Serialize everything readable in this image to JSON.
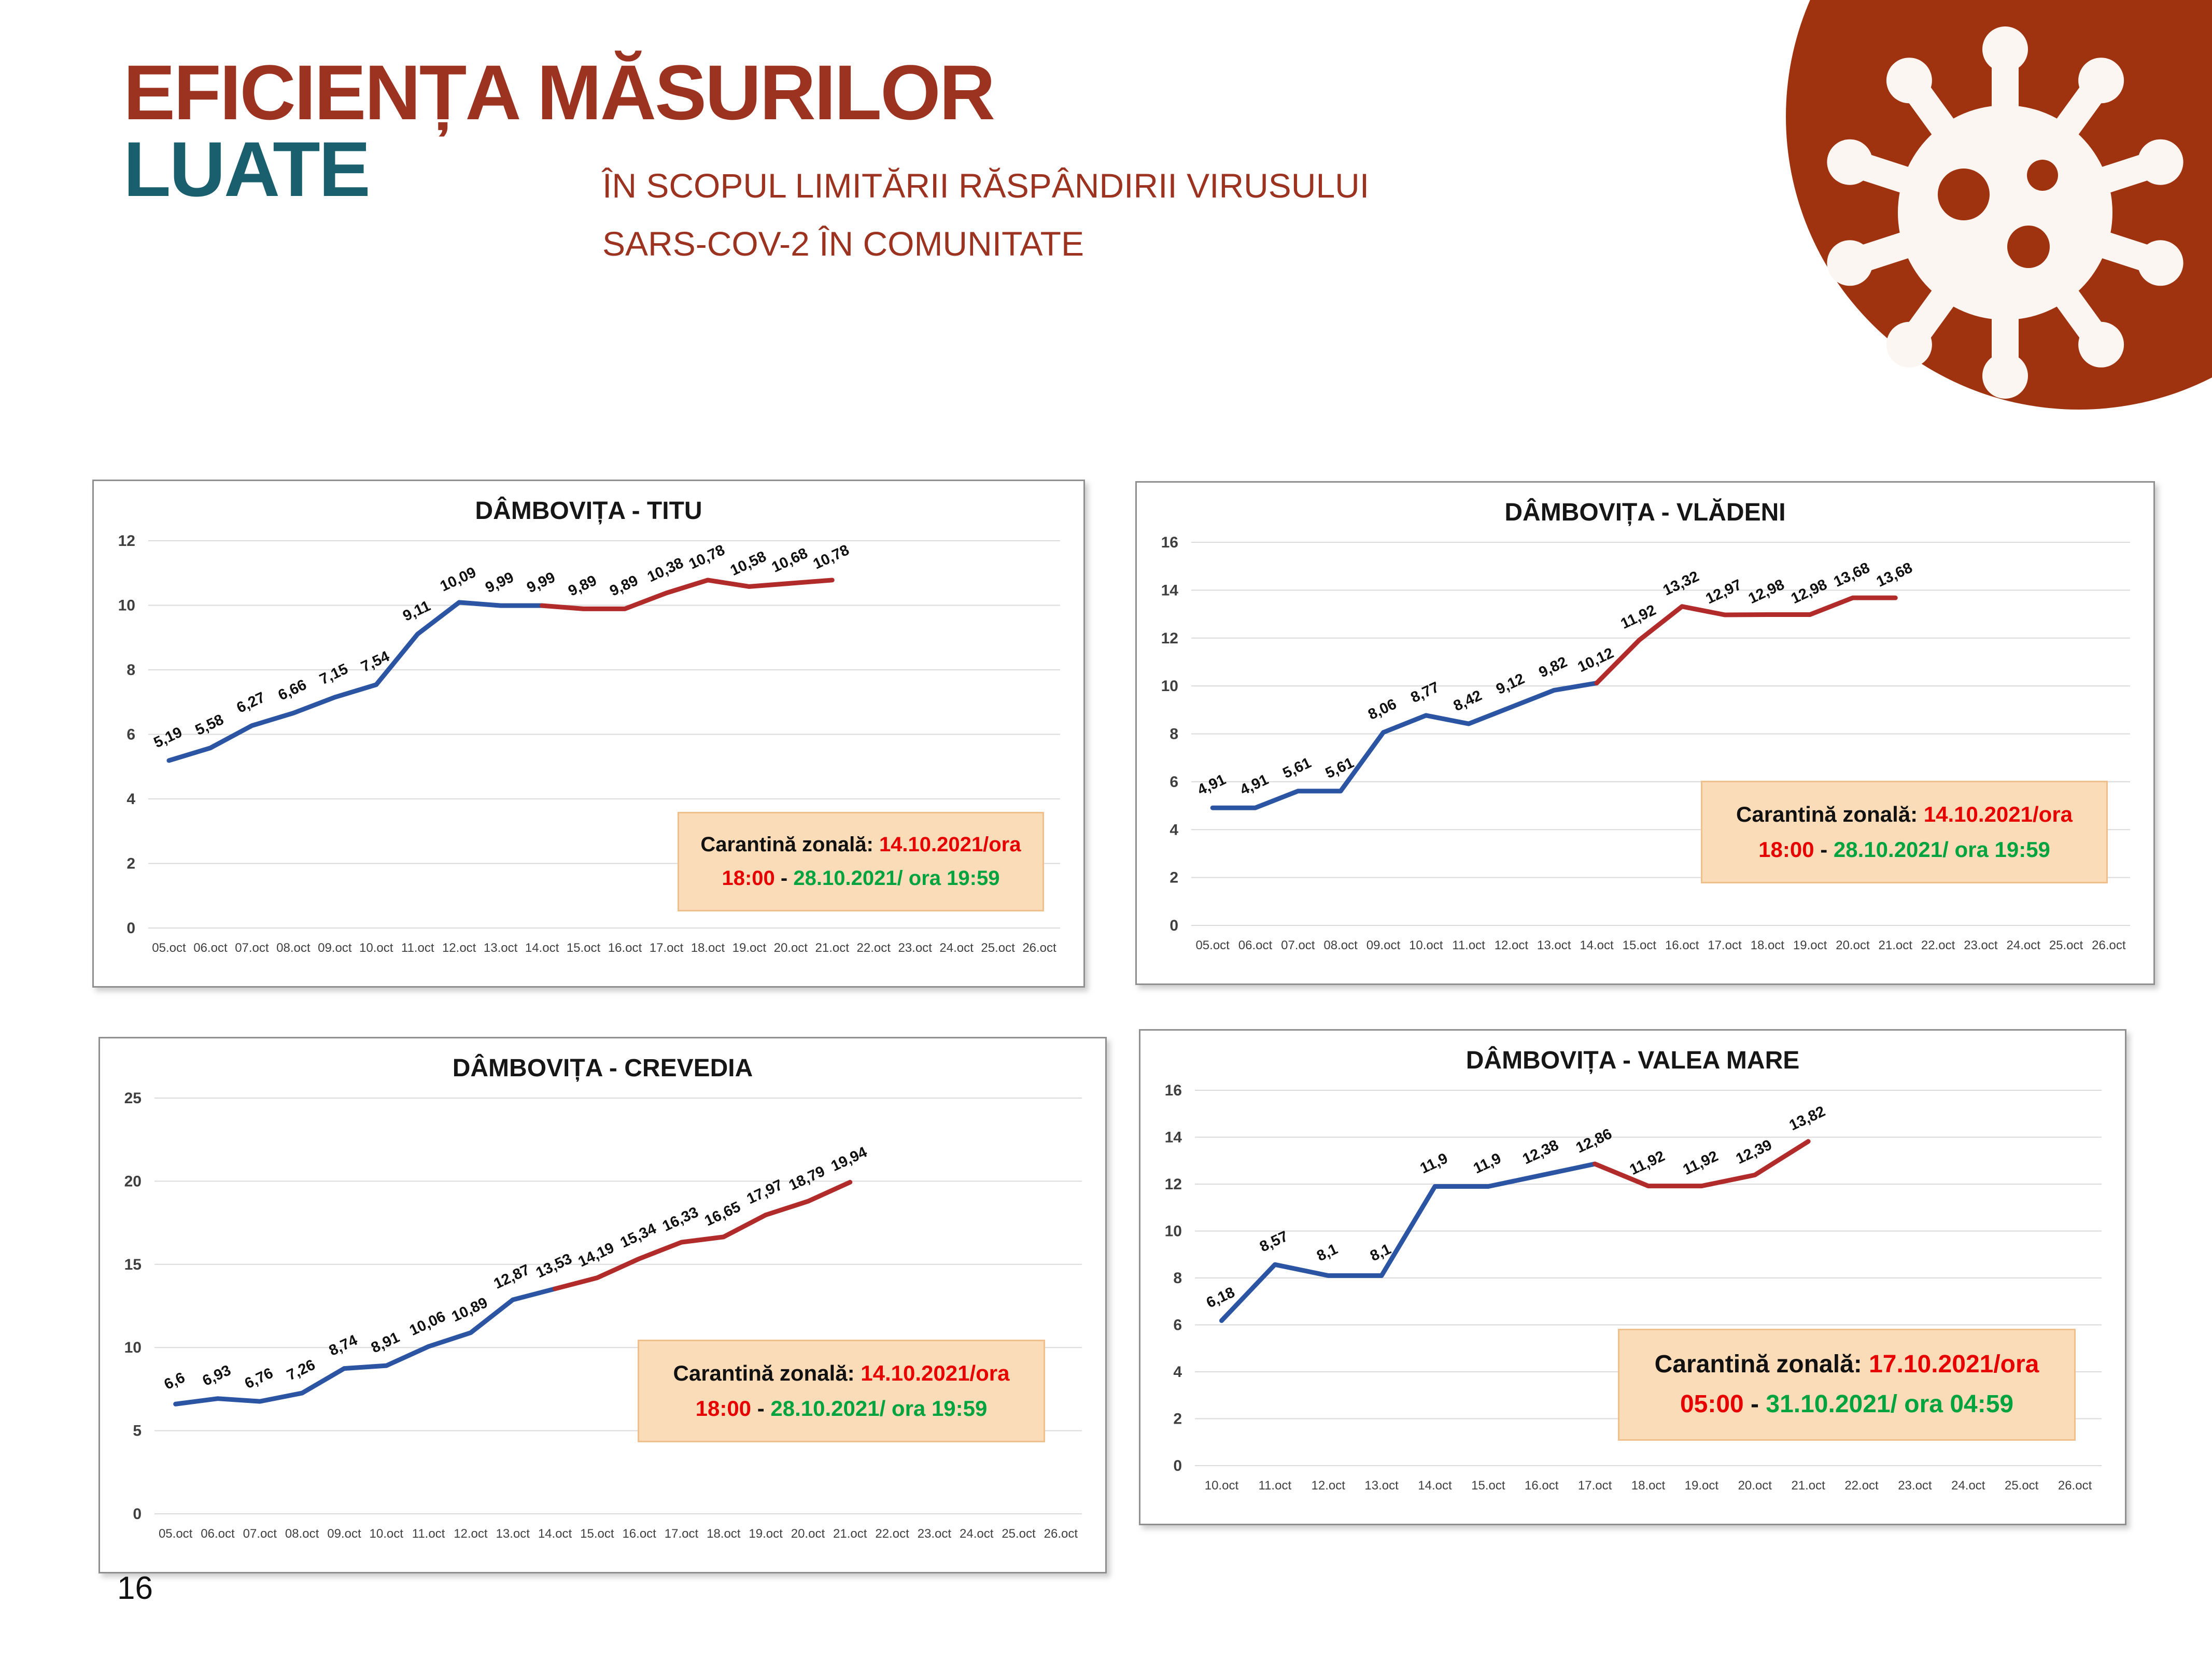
{
  "page": {
    "number": "16"
  },
  "header": {
    "title_line1": "EFICIENȚA MĂSURILOR",
    "title_line2": "LUATE",
    "subtitle_line1": "ÎN SCOPUL LIMITĂRII RĂSPÂNDIRII VIRUSULUI",
    "subtitle_line2": "SARS-COV-2 ÎN COMUNITATE"
  },
  "icons": {
    "virus": "virus-icon"
  },
  "colors": {
    "title_red": "#9C3320",
    "title_teal": "#1A5F6E",
    "virus_badge": "#A0330F",
    "virus_glyph": "#FBF6F2",
    "line_before_quarantine": "#2B55A2",
    "line_after_quarantine": "#B02B29",
    "gridline": "#DADADA",
    "axis_text": "#3F3F3F",
    "data_label": "#111111",
    "callout_bg": "#FBDCB8",
    "callout_border": "#F0C08C",
    "callout_red": "#E60000",
    "callout_green": "#00A33E"
  },
  "chart_data": [
    {
      "type": "line",
      "title": "DÂMBOVIȚA - TITU",
      "xlabel": "",
      "ylabel": "",
      "ylim": [
        0,
        12
      ],
      "ytick_step": 2,
      "grid": true,
      "categories": [
        "05.oct",
        "06.oct",
        "07.oct",
        "08.oct",
        "09.oct",
        "10.oct",
        "11.oct",
        "12.oct",
        "13.oct",
        "14.oct",
        "15.oct",
        "16.oct",
        "17.oct",
        "18.oct",
        "19.oct",
        "20.oct",
        "21.oct",
        "22.oct",
        "23.oct",
        "24.oct",
        "25.oct",
        "26.oct"
      ],
      "values": [
        5.19,
        5.58,
        6.27,
        6.66,
        7.15,
        7.54,
        9.11,
        10.09,
        9.99,
        9.99,
        9.89,
        9.89,
        10.38,
        10.78,
        10.58,
        10.68,
        10.78
      ],
      "labels": [
        "5,19",
        "5,58",
        "6,27",
        "6,66",
        "7,15",
        "7,54",
        "9,11",
        "10,09",
        "9,99",
        "9,99",
        "9,89",
        "9,89",
        "10,38",
        "10,78",
        "10,58",
        "10,68",
        "10,78"
      ],
      "quarantine_start_index": 9,
      "bold_label_index": 9,
      "series_colors": {
        "before": "#2B55A2",
        "after": "#B02B29"
      },
      "annotation": {
        "label": "Carantină zonală:",
        "start": "14.10.2021/ora 18:00",
        "separator": "-",
        "end": "28.10.2021/ ora 19:59"
      }
    },
    {
      "type": "line",
      "title": "DÂMBOVIȚA - VLĂDENI",
      "xlabel": "",
      "ylabel": "",
      "ylim": [
        0,
        16
      ],
      "ytick_step": 2,
      "grid": true,
      "categories": [
        "05.oct",
        "06.oct",
        "07.oct",
        "08.oct",
        "09.oct",
        "10.oct",
        "11.oct",
        "12.oct",
        "13.oct",
        "14.oct",
        "15.oct",
        "16.oct",
        "17.oct",
        "18.oct",
        "19.oct",
        "20.oct",
        "21.oct",
        "22.oct",
        "23.oct",
        "24.oct",
        "25.oct",
        "26.oct"
      ],
      "values": [
        4.91,
        4.91,
        5.61,
        5.61,
        8.06,
        8.77,
        8.42,
        9.12,
        9.82,
        10.12,
        11.92,
        13.32,
        12.97,
        12.98,
        12.98,
        13.68,
        13.68
      ],
      "labels": [
        "4,91",
        "4,91",
        "5,61",
        "5,61",
        "8,06",
        "8,77",
        "8,42",
        "9,12",
        "9,82",
        "10,12",
        "11,92",
        "13,32",
        "12,97",
        "12,98",
        "12,98",
        "13,68",
        "13,68"
      ],
      "quarantine_start_index": 9,
      "bold_label_index": 9,
      "series_colors": {
        "before": "#2B55A2",
        "after": "#B02B29"
      },
      "annotation": {
        "label": "Carantină zonală:",
        "start": "14.10.2021/ora 18:00",
        "separator": "-",
        "end": "28.10.2021/ ora 19:59"
      }
    },
    {
      "type": "line",
      "title": "DÂMBOVIȚA - CREVEDIA",
      "xlabel": "",
      "ylabel": "",
      "ylim": [
        0,
        25
      ],
      "ytick_step": 5,
      "grid": true,
      "categories": [
        "05.oct",
        "06.oct",
        "07.oct",
        "08.oct",
        "09.oct",
        "10.oct",
        "11.oct",
        "12.oct",
        "13.oct",
        "14.oct",
        "15.oct",
        "16.oct",
        "17.oct",
        "18.oct",
        "19.oct",
        "20.oct",
        "21.oct",
        "22.oct",
        "23.oct",
        "24.oct",
        "25.oct",
        "26.oct"
      ],
      "values": [
        6.6,
        6.93,
        6.76,
        7.26,
        8.74,
        8.91,
        10.06,
        10.89,
        12.87,
        13.53,
        14.19,
        15.34,
        16.33,
        16.65,
        17.97,
        18.79,
        19.94
      ],
      "labels": [
        "6,6",
        "6,93",
        "6,76",
        "7,26",
        "8,74",
        "8,91",
        "10,06",
        "10,89",
        "12,87",
        "13,53",
        "14,19",
        "15,34",
        "16,33",
        "16,65",
        "17,97",
        "18,79",
        "19,94"
      ],
      "quarantine_start_index": 9,
      "bold_label_index": 9,
      "series_colors": {
        "before": "#2B55A2",
        "after": "#B02B29"
      },
      "annotation": {
        "label": "Carantină zonală:",
        "start": "14.10.2021/ora 18:00",
        "separator": "-",
        "end": "28.10.2021/ ora 19:59"
      }
    },
    {
      "type": "line",
      "title": "DÂMBOVIȚA - VALEA MARE",
      "xlabel": "",
      "ylabel": "",
      "ylim": [
        0,
        16
      ],
      "ytick_step": 2,
      "grid": true,
      "categories": [
        "10.oct",
        "11.oct",
        "12.oct",
        "13.oct",
        "14.oct",
        "15.oct",
        "16.oct",
        "17.oct",
        "18.oct",
        "19.oct",
        "20.oct",
        "21.oct",
        "22.oct",
        "23.oct",
        "24.oct",
        "25.oct",
        "26.oct"
      ],
      "values": [
        6.18,
        8.57,
        8.1,
        8.1,
        11.9,
        11.9,
        12.38,
        12.86,
        11.92,
        11.92,
        12.39,
        13.82
      ],
      "labels": [
        "6,18",
        "8,57",
        "8,1",
        "8,1",
        "11,9",
        "11,9",
        "12,38",
        "12,86",
        "11,92",
        "11,92",
        "12,39",
        "13,82"
      ],
      "quarantine_start_index": 7,
      "bold_label_index": 7,
      "series_colors": {
        "before": "#2B55A2",
        "after": "#B02B29"
      },
      "annotation": {
        "label": "Carantină zonală:",
        "start": "17.10.2021/ora 05:00",
        "separator": "-",
        "end": "31.10.2021/ ora 04:59"
      }
    }
  ]
}
